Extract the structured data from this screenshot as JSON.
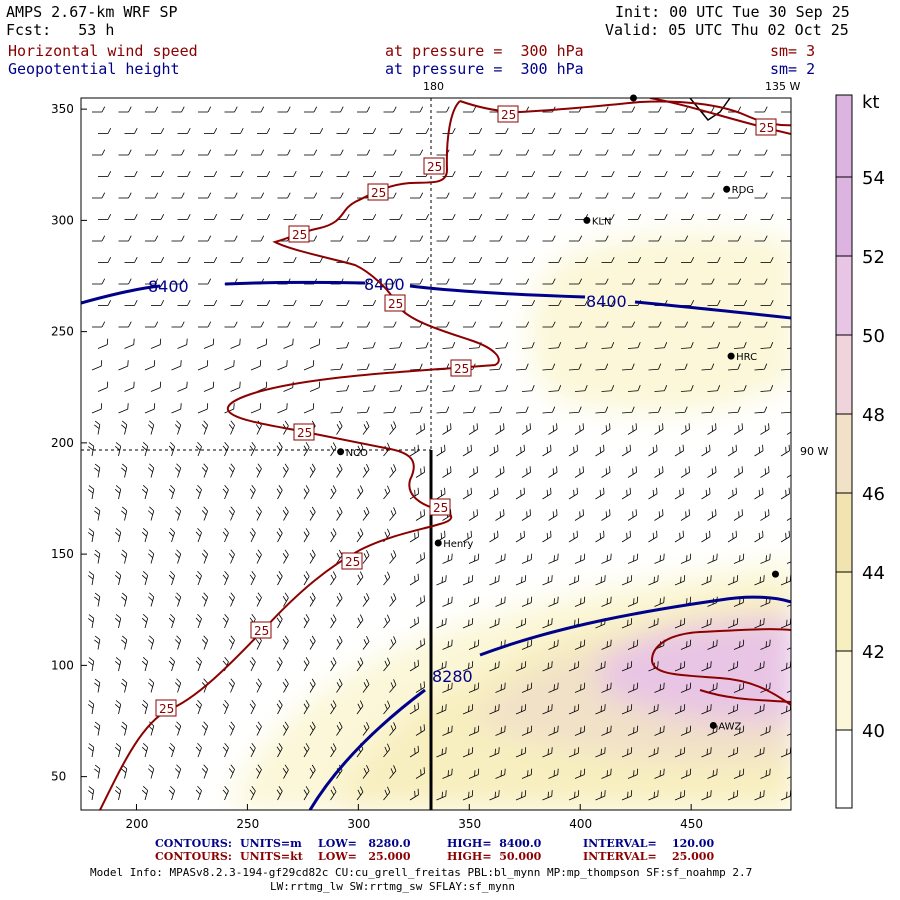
{
  "header": {
    "model": "AMPS 2.67-km WRF SP",
    "fcst": "Fcst:   53 h",
    "init": "Init: 00 UTC Tue 30 Sep 25",
    "valid": "Valid: 05 UTC Thu 02 Oct 25",
    "field1": "Horizontal wind speed",
    "field2": "Geopotential height",
    "level1": "at pressure =  300 hPa",
    "level2": "at pressure =  300 hPa",
    "sm1": "sm= 3",
    "sm2": "sm= 2"
  },
  "map": {
    "lon_labels": [
      "180",
      "135 W",
      "90 W"
    ],
    "stations": [
      {
        "name": "KLN",
        "x": 403,
        "y": 300
      },
      {
        "name": "RDG",
        "x": 466,
        "y": 314
      },
      {
        "name": "HRC",
        "x": 468,
        "y": 239
      },
      {
        "name": "NCO",
        "x": 292,
        "y": 196
      },
      {
        "name": "Henry",
        "x": 336,
        "y": 155
      },
      {
        "name": "AWZ",
        "x": 460,
        "y": 73
      },
      {
        "name": "",
        "x": 488,
        "y": 141
      },
      {
        "name": "",
        "x": 424,
        "y": 355
      }
    ]
  },
  "chart_data": {
    "type": "contour",
    "x_range": [
      175,
      495
    ],
    "y_range": [
      35,
      355
    ],
    "x_ticks": [
      200,
      250,
      300,
      350,
      400,
      450
    ],
    "y_ticks": [
      50,
      100,
      150,
      200,
      250,
      300,
      350
    ],
    "height_contour_labels": [
      "8400",
      "8400",
      "8400",
      "8280"
    ],
    "speed_contour_labels": [
      "25",
      "25",
      "25",
      "25",
      "25",
      "25",
      "25",
      "25",
      "25",
      "25",
      "25",
      "25"
    ],
    "colorbar": {
      "unit": "kt",
      "levels": [
        40,
        42,
        44,
        46,
        48,
        50,
        52,
        54
      ]
    }
  },
  "footer": {
    "c1_label": "CONTOURS:",
    "c1_units": "UNITS=m",
    "c1_low": "LOW=   8280.0",
    "c1_high": "HIGH=  8400.0",
    "c1_int": "INTERVAL=    120.00",
    "c2_label": "CONTOURS:",
    "c2_units": "UNITS=kt",
    "c2_low": "LOW=   25.000",
    "c2_high": "HIGH=  50.000",
    "c2_int": "INTERVAL=    25.000",
    "model_info": "Model Info: MPASv8.2.3-194-gf29cd82c CU:cu_grell_freitas PBL:bl_mynn MP:mp_thompson SF:sf_noahmp 2.7",
    "model_info2": "LW:rrtmg_lw SW:rrtmg_sw SFLAY:sf_mynn"
  },
  "colors": {
    "speed_contour": "#8b0000",
    "height_contour": "#00008b",
    "shade40": "#fbf7d8",
    "shade42": "#f8efc0",
    "shade44": "#f2e4b0",
    "shade46": "#f1e1c7",
    "shade48": "#efd4dc",
    "shade50": "#e8c5e4",
    "shade52": "#ddb3e2"
  }
}
